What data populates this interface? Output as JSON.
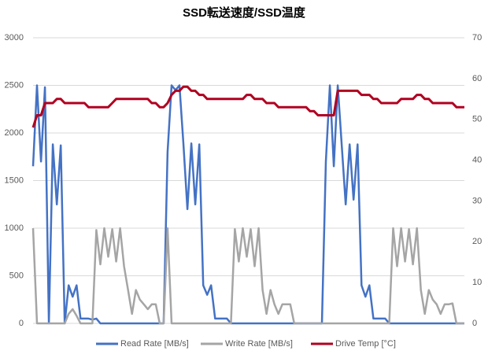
{
  "chart_data": {
    "type": "line",
    "title": "SSD転送速度/SSD温度",
    "categories": [
      null,
      null,
      null,
      null,
      null,
      null,
      null,
      null,
      null,
      null,
      null,
      null,
      null,
      null,
      null,
      null,
      null,
      null,
      null,
      null,
      null,
      null,
      null,
      null,
      null,
      null,
      null,
      null,
      null,
      null,
      null,
      null,
      null,
      null,
      null,
      null,
      null,
      null,
      null,
      null,
      null,
      null,
      null,
      null,
      null,
      null,
      null,
      null,
      null,
      null,
      null,
      null,
      null,
      null,
      null,
      null,
      null,
      null,
      null,
      null,
      null,
      null,
      null,
      null,
      null,
      null,
      null,
      null,
      null,
      null,
      null,
      null,
      null,
      null,
      null,
      null,
      null,
      null,
      null,
      null,
      null,
      null,
      null,
      null,
      null,
      null,
      null,
      null,
      null,
      null,
      null,
      null,
      null,
      null,
      null,
      null,
      null,
      null,
      null,
      null,
      null,
      null,
      null,
      null,
      null,
      null,
      null,
      null,
      null,
      null
    ],
    "series": [
      {
        "name": "Read Rate [MB/s]",
        "color": "#4472c4",
        "values": [
          1650,
          2500,
          1700,
          2480,
          0,
          1880,
          1250,
          1870,
          0,
          400,
          280,
          400,
          50,
          50,
          50,
          40,
          50,
          0,
          0,
          0,
          0,
          0,
          0,
          0,
          0,
          0,
          0,
          0,
          0,
          0,
          0,
          0,
          0,
          0,
          1800,
          2500,
          2450,
          2500,
          1890,
          1200,
          1890,
          1250,
          1880,
          400,
          300,
          400,
          50,
          50,
          50,
          50,
          0,
          0,
          0,
          0,
          0,
          0,
          0,
          0,
          0,
          0,
          0,
          0,
          0,
          0,
          0,
          0,
          0,
          0,
          0,
          0,
          0,
          0,
          0,
          0,
          1700,
          2500,
          1650,
          2500,
          1880,
          1250,
          1880,
          1300,
          1880,
          400,
          280,
          400,
          50,
          50,
          50,
          50,
          0,
          0,
          0,
          0,
          0,
          0,
          0,
          0,
          0,
          0,
          0,
          0,
          0,
          0,
          0,
          0,
          0,
          0,
          0,
          0
        ]
      },
      {
        "name": "Write Rate [MB/s]",
        "color": "#a5a5a5",
        "values": [
          1000,
          0,
          0,
          0,
          0,
          0,
          0,
          0,
          0,
          100,
          150,
          80,
          0,
          0,
          0,
          0,
          980,
          620,
          1000,
          700,
          990,
          650,
          1000,
          600,
          350,
          100,
          350,
          250,
          200,
          150,
          200,
          200,
          0,
          0,
          1000,
          0,
          0,
          0,
          0,
          0,
          0,
          0,
          0,
          0,
          0,
          0,
          0,
          0,
          0,
          0,
          0,
          990,
          650,
          1000,
          700,
          990,
          600,
          1000,
          350,
          100,
          350,
          200,
          100,
          200,
          200,
          200,
          0,
          0,
          0,
          0,
          0,
          0,
          0,
          0,
          0,
          0,
          0,
          0,
          0,
          0,
          0,
          0,
          0,
          0,
          0,
          0,
          0,
          0,
          0,
          0,
          0,
          1000,
          600,
          1000,
          650,
          990,
          620,
          1000,
          350,
          100,
          350,
          250,
          200,
          100,
          200,
          200,
          210,
          0,
          0,
          0
        ]
      },
      {
        "name": "Drive Temp [°C]",
        "color": "#b00020",
        "axis": "y2",
        "values": [
          48,
          51,
          51,
          54,
          54,
          54,
          55,
          55,
          54,
          54,
          54,
          54,
          54,
          54,
          53,
          53,
          53,
          53,
          53,
          53,
          54,
          55,
          55,
          55,
          55,
          55,
          55,
          55,
          55,
          55,
          54,
          54,
          53,
          53,
          54,
          56,
          57,
          57,
          58,
          58,
          57,
          57,
          56,
          56,
          55,
          55,
          55,
          55,
          55,
          55,
          55,
          55,
          55,
          55,
          56,
          56,
          55,
          55,
          55,
          54,
          54,
          54,
          53,
          53,
          53,
          53,
          53,
          53,
          53,
          53,
          52,
          52,
          51,
          51,
          51,
          51,
          51,
          57,
          57,
          57,
          57,
          57,
          57,
          56,
          56,
          56,
          55,
          55,
          54,
          54,
          54,
          54,
          54,
          55,
          55,
          55,
          55,
          56,
          56,
          55,
          55,
          54,
          54,
          54,
          54,
          54,
          54,
          53,
          53,
          53
        ]
      }
    ],
    "ylim": [
      0,
      3000
    ],
    "yticks": [
      0,
      500,
      1000,
      1500,
      2000,
      2500,
      3000
    ],
    "y2lim": [
      0,
      70
    ],
    "y2ticks": [
      0,
      10,
      20,
      30,
      40,
      50,
      60,
      70
    ],
    "grid": true,
    "legend": "bottom"
  }
}
